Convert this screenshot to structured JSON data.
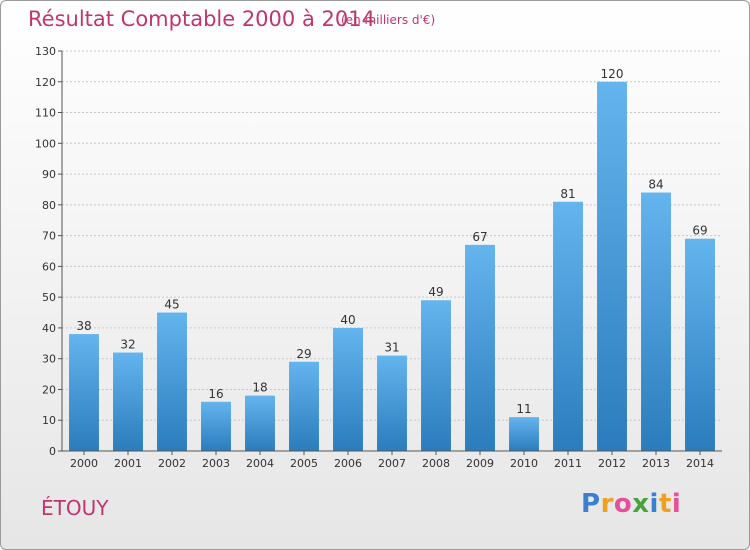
{
  "title": "Résultat Comptable 2000 à 2014",
  "unit": "(en milliers d'€)",
  "commune": "ÉTOUY",
  "logo": {
    "text": "Proxiti",
    "letters": [
      "P",
      "r",
      "o",
      "x",
      "i",
      "t",
      "i"
    ],
    "colors": [
      "#3b7fd0",
      "#f0a020",
      "#e84f9a",
      "#4aa33a",
      "#3b7fd0",
      "#f0a020",
      "#e84f9a"
    ]
  },
  "colors": {
    "bar_top": "#64b4ee",
    "bar_bottom": "#2a7cbc",
    "accent": "#c0356f"
  },
  "chart_data": {
    "type": "bar",
    "title": "Résultat Comptable 2000 à 2014",
    "subtitle": "(en milliers d'€)",
    "xlabel": "",
    "ylabel": "",
    "categories": [
      "2000",
      "2001",
      "2002",
      "2003",
      "2004",
      "2005",
      "2006",
      "2007",
      "2008",
      "2009",
      "2010",
      "2011",
      "2012",
      "2013",
      "2014"
    ],
    "values": [
      38,
      32,
      45,
      16,
      18,
      29,
      40,
      31,
      49,
      67,
      11,
      81,
      120,
      84,
      69
    ],
    "ylim": [
      0,
      130
    ],
    "yticks": [
      0,
      10,
      20,
      30,
      40,
      50,
      60,
      70,
      80,
      90,
      100,
      110,
      120,
      130
    ],
    "grid": true
  }
}
